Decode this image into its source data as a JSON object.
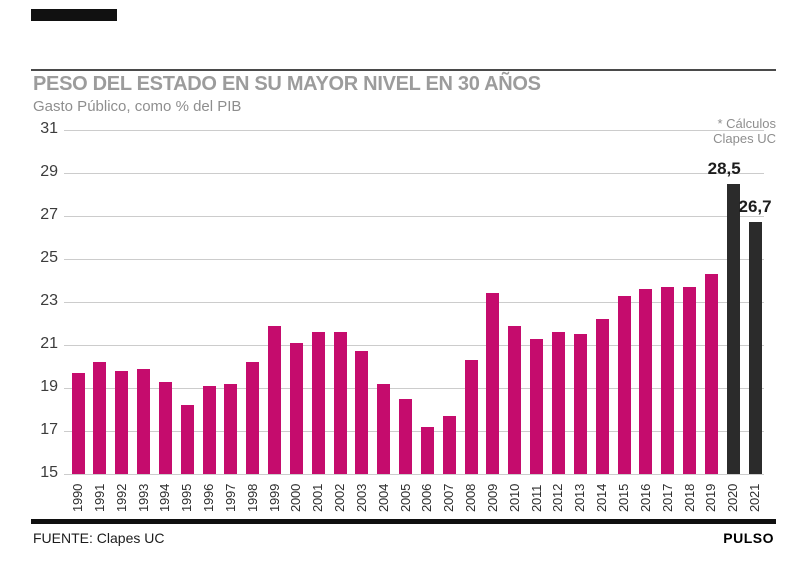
{
  "header": {
    "title": "PESO DEL ESTADO EN SU MAYOR NIVEL EN 30 AÑOS",
    "subtitle": "Gasto Público, como % del PIB",
    "note_line1": "* Cálculos",
    "note_line2": "Clapes UC"
  },
  "footer": {
    "source": "FUENTE: Clapes UC",
    "brand": "PULSO"
  },
  "chart_data": {
    "type": "bar",
    "title": "PESO DEL ESTADO EN SU MAYOR NIVEL EN 30 AÑOS",
    "subtitle": "Gasto Público, como % del PIB",
    "xlabel": "",
    "ylabel": "Gasto Público, como % del PIB",
    "categories": [
      "1990",
      "1991",
      "1992",
      "1993",
      "1994",
      "1995",
      "1996",
      "1997",
      "1998",
      "1999",
      "2000",
      "2001",
      "2002",
      "2003",
      "2004",
      "2005",
      "2006",
      "2007",
      "2008",
      "2009",
      "2010",
      "2011",
      "2012",
      "2013",
      "2014",
      "2015",
      "2016",
      "2017",
      "2018",
      "2019",
      "2020",
      "2021"
    ],
    "values": [
      19.7,
      20.2,
      19.8,
      19.9,
      19.3,
      18.2,
      19.1,
      19.2,
      20.2,
      21.9,
      21.1,
      21.6,
      21.6,
      20.7,
      19.2,
      18.5,
      17.2,
      17.7,
      20.3,
      23.4,
      21.9,
      21.3,
      21.6,
      21.5,
      22.2,
      23.3,
      23.6,
      23.7,
      23.7,
      24.3,
      28.5,
      26.7
    ],
    "ylim": [
      15,
      31
    ],
    "yticks": [
      31,
      29,
      27,
      25,
      23,
      21,
      19,
      17,
      15
    ],
    "grid": true,
    "legend": "none",
    "bar_color": "#c50c6d",
    "highlight_color": "#2b2b2b",
    "highlight_categories": [
      "2020",
      "2021"
    ],
    "value_labels": [
      {
        "category": "2020",
        "label": "28,5",
        "anchor": "bar-right"
      },
      {
        "category": "2021",
        "label": "26,7",
        "anchor": "bar-center"
      }
    ]
  }
}
